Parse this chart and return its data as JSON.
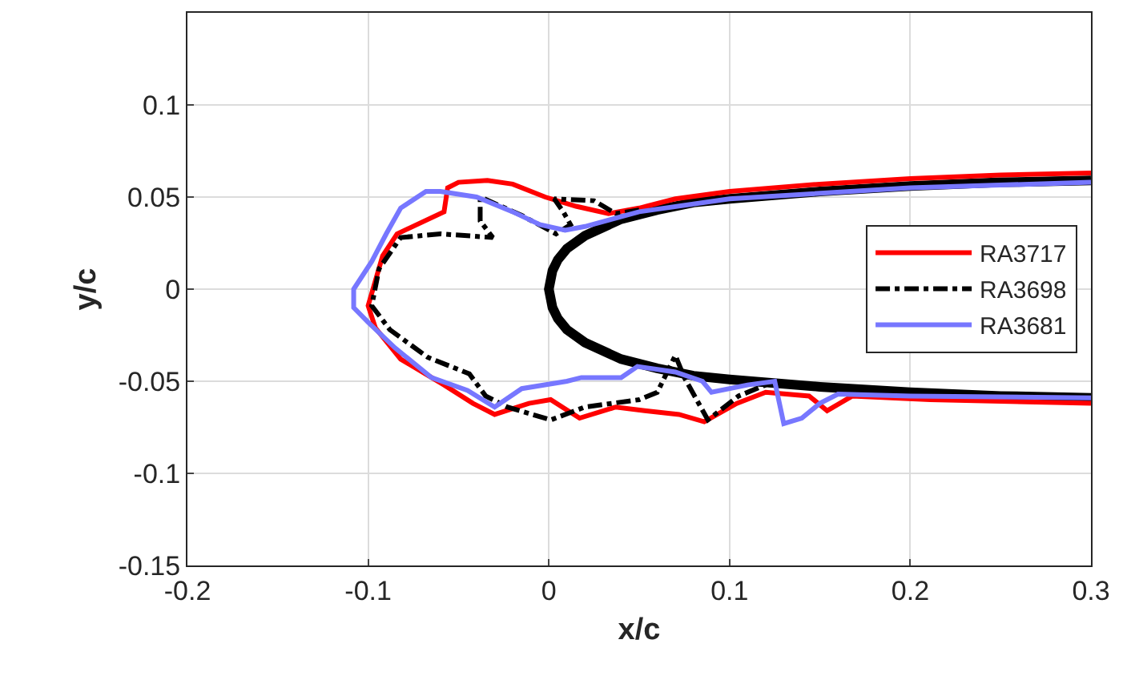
{
  "chart_data": {
    "type": "line",
    "xlabel": "x/c",
    "ylabel": "y/c",
    "xlim": [
      -0.2,
      0.3
    ],
    "xticks": [
      -0.2,
      -0.1,
      0,
      0.1,
      0.2,
      0.3
    ],
    "ylim": [
      -0.15,
      0.15
    ],
    "yticks": [
      -0.15,
      -0.1,
      -0.05,
      0,
      0.05,
      0.1
    ],
    "grid": true,
    "legend": "right",
    "marker": "none",
    "series": [
      {
        "name": "RA3717",
        "color": "#ff0000",
        "line_style": "solid",
        "x": [
          0.3,
          0.25,
          0.2,
          0.15,
          0.1,
          0.07,
          0.05,
          0.033,
          0.015,
          -0.002,
          -0.02,
          -0.034,
          -0.05,
          -0.056,
          -0.058,
          -0.084,
          -0.092,
          -0.1,
          -0.096,
          -0.082,
          -0.058,
          -0.042,
          -0.03,
          -0.011,
          0.001,
          0.017,
          0.037,
          0.053,
          0.072,
          0.086,
          0.104,
          0.12,
          0.144,
          0.154,
          0.168,
          0.211,
          0.3
        ],
        "values": [
          0.063,
          0.062,
          0.06,
          0.057,
          0.053,
          0.049,
          0.044,
          0.041,
          0.045,
          0.05,
          0.057,
          0.059,
          0.058,
          0.055,
          0.042,
          0.03,
          0.018,
          -0.009,
          -0.021,
          -0.038,
          -0.052,
          -0.062,
          -0.068,
          -0.062,
          -0.06,
          -0.07,
          -0.064,
          -0.066,
          -0.068,
          -0.072,
          -0.062,
          -0.056,
          -0.058,
          -0.066,
          -0.058,
          -0.06,
          -0.062
        ]
      },
      {
        "name": "RA3698",
        "color": "#000000",
        "line_style": "dashdot",
        "x": [
          0.05,
          0.037,
          0.025,
          0.003,
          0.008,
          0.012,
          0.004,
          -0.015,
          -0.038,
          -0.038,
          -0.031,
          -0.06,
          -0.082,
          -0.094,
          -0.098,
          -0.088,
          -0.067,
          -0.044,
          -0.035,
          -0.023,
          0.001,
          0.02,
          0.05,
          0.06,
          0.07,
          0.075,
          0.088,
          0.105,
          0.12
        ],
        "values": [
          0.043,
          0.041,
          0.048,
          0.049,
          0.042,
          0.035,
          0.03,
          0.04,
          0.05,
          0.037,
          0.028,
          0.03,
          0.028,
          0.011,
          -0.009,
          -0.022,
          -0.037,
          -0.046,
          -0.058,
          -0.064,
          -0.071,
          -0.064,
          -0.06,
          -0.056,
          -0.036,
          -0.048,
          -0.071,
          -0.058,
          -0.052
        ]
      },
      {
        "name": "RA3681",
        "color": "#7777ff",
        "line_style": "solid",
        "x": [
          0.3,
          0.2,
          0.1,
          0.05,
          0.02,
          0.009,
          -0.005,
          -0.02,
          -0.04,
          -0.06,
          -0.068,
          -0.082,
          -0.09,
          -0.098,
          -0.108,
          -0.108,
          -0.1,
          -0.085,
          -0.065,
          -0.045,
          -0.03,
          -0.015,
          0.01,
          0.018,
          0.04,
          0.049,
          0.07,
          0.085,
          0.09,
          0.11,
          0.125,
          0.13,
          0.14,
          0.15,
          0.16,
          0.2,
          0.3
        ],
        "values": [
          0.058,
          0.055,
          0.049,
          0.042,
          0.034,
          0.032,
          0.035,
          0.042,
          0.05,
          0.053,
          0.053,
          0.044,
          0.03,
          0.015,
          0.0,
          -0.01,
          -0.018,
          -0.032,
          -0.048,
          -0.055,
          -0.064,
          -0.054,
          -0.05,
          -0.048,
          -0.048,
          -0.042,
          -0.045,
          -0.05,
          -0.056,
          -0.052,
          -0.05,
          -0.073,
          -0.07,
          -0.062,
          -0.057,
          -0.058,
          -0.059
        ]
      },
      {
        "color": "#000000",
        "line_style": "solid",
        "x": [
          0.3,
          0.25,
          0.2,
          0.15,
          0.1,
          0.08,
          0.06,
          0.04,
          0.02,
          0.01,
          0.005,
          0.002,
          0,
          0.002,
          0.005,
          0.01,
          0.02,
          0.04,
          0.06,
          0.08,
          0.1,
          0.15,
          0.2,
          0.25,
          0.3
        ],
        "values": [
          0.059,
          0.058,
          0.056,
          0.053,
          0.049,
          0.047,
          0.043,
          0.038,
          0.029,
          0.022,
          0.016,
          0.01,
          0,
          -0.01,
          -0.016,
          -0.022,
          -0.029,
          -0.038,
          -0.043,
          -0.047,
          -0.049,
          -0.053,
          -0.056,
          -0.058,
          -0.059
        ]
      }
    ]
  }
}
